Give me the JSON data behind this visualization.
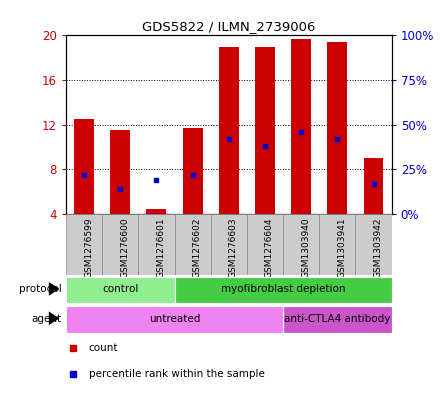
{
  "title": "GDS5822 / ILMN_2739006",
  "samples": [
    "GSM1276599",
    "GSM1276600",
    "GSM1276601",
    "GSM1276602",
    "GSM1276603",
    "GSM1276604",
    "GSM1303940",
    "GSM1303941",
    "GSM1303942"
  ],
  "counts": [
    12.5,
    11.5,
    4.5,
    11.7,
    19.0,
    19.0,
    19.7,
    19.4,
    9.0
  ],
  "percentiles": [
    22,
    14,
    19,
    22,
    42,
    38,
    46,
    42,
    17
  ],
  "ylim_left": [
    4,
    20
  ],
  "ylim_right": [
    0,
    100
  ],
  "yticks_left": [
    4,
    8,
    12,
    16,
    20
  ],
  "yticks_right": [
    0,
    25,
    50,
    75,
    100
  ],
  "protocol_groups": [
    {
      "label": "control",
      "start": 0,
      "end": 3,
      "color": "#90EE90"
    },
    {
      "label": "myofibroblast depletion",
      "start": 3,
      "end": 9,
      "color": "#44CC44"
    }
  ],
  "agent_groups": [
    {
      "label": "untreated",
      "start": 0,
      "end": 6,
      "color": "#EE82EE"
    },
    {
      "label": "anti-CTLA4 antibody",
      "start": 6,
      "end": 9,
      "color": "#CC55CC"
    }
  ],
  "bar_color": "#CC0000",
  "dot_color": "#0000CC",
  "bar_width": 0.55,
  "left_label_color": "#CC0000",
  "right_label_color": "#0000CC",
  "legend_items": [
    {
      "label": "count",
      "color": "#CC0000"
    },
    {
      "label": "percentile rank within the sample",
      "color": "#0000CC"
    }
  ],
  "sample_bg_color": "#CCCCCC",
  "sample_edge_color": "#888888"
}
